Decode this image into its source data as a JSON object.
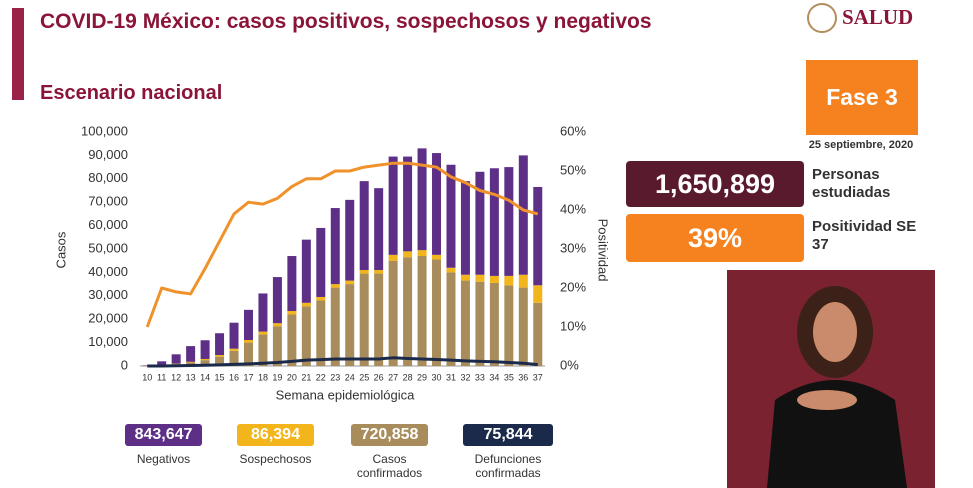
{
  "header": {
    "title": "COVID-19 México: casos positivos, sospechosos y negativos",
    "subtitle": "Escenario nacional",
    "logo": "SALUD",
    "phase": "Fase 3",
    "date": "25 septiembre, 2020"
  },
  "stats": [
    {
      "value": "1,650,899",
      "label": "Personas estudiadas"
    },
    {
      "value": "39%",
      "label": "Positividad SE 37"
    }
  ],
  "chart_data": {
    "type": "bar",
    "x_label": "Semana epidemiológica",
    "y_label": "Casos",
    "y2_label": "Positividad",
    "categories": [
      "10",
      "11",
      "12",
      "13",
      "14",
      "15",
      "16",
      "17",
      "18",
      "19",
      "20",
      "21",
      "22",
      "23",
      "24",
      "25",
      "26",
      "27",
      "28",
      "29",
      "30",
      "31",
      "32",
      "33",
      "34",
      "35",
      "36",
      "37"
    ],
    "ylim": [
      0,
      100000
    ],
    "yticks": [
      0,
      {
        "value": 10000,
        "label": "10,000"
      },
      {
        "value": 20000,
        "label": "20,000"
      },
      {
        "value": 30000,
        "label": "30,000"
      },
      {
        "value": 40000,
        "label": "40,000"
      },
      {
        "value": 50000,
        "label": "50,000"
      },
      {
        "value": 60000,
        "label": "60,000"
      },
      {
        "value": 70000,
        "label": "70,000"
      },
      {
        "value": 80000,
        "label": "80,000"
      },
      {
        "value": 90000,
        "label": "90,000"
      },
      {
        "value": 100000,
        "label": "100,000"
      }
    ],
    "y2lim": [
      0,
      60
    ],
    "y2ticks": [
      {
        "value": 0,
        "label": "0%"
      },
      {
        "value": 10,
        "label": "10%"
      },
      {
        "value": 20,
        "label": "20%"
      },
      {
        "value": 30,
        "label": "30%"
      },
      {
        "value": 40,
        "label": "40%"
      },
      {
        "value": 50,
        "label": "50%"
      },
      {
        "value": 60,
        "label": "60%"
      }
    ],
    "series": [
      {
        "name": "Negativos",
        "total": "843,647",
        "type": "bar",
        "color": "#5e2f86",
        "values": [
          150,
          1600,
          4000,
          6700,
          8000,
          9300,
          11100,
          12900,
          16300,
          19700,
          23500,
          27000,
          29500,
          32500,
          34500,
          38000,
          35000,
          42000,
          40500,
          43500,
          43500,
          44000,
          40000,
          44000,
          46000,
          46500,
          51000,
          42000
        ]
      },
      {
        "name": "Sospechosos",
        "total": "86,394",
        "type": "bar",
        "color": "#f2b51b",
        "values": [
          50,
          100,
          200,
          300,
          500,
          700,
          900,
          1100,
          1200,
          1300,
          1500,
          1500,
          1500,
          1500,
          1500,
          1500,
          1500,
          2500,
          2500,
          2500,
          2000,
          2000,
          2500,
          3000,
          3000,
          4000,
          5500,
          7500
        ]
      },
      {
        "name": "Casos confirmados",
        "total": "720,858",
        "type": "bar",
        "color": "#a98c5b",
        "values": [
          100,
          300,
          800,
          1500,
          2500,
          4000,
          6500,
          10000,
          13500,
          17000,
          22000,
          25500,
          28000,
          33500,
          35000,
          39500,
          39500,
          45000,
          46500,
          47000,
          45500,
          40000,
          36500,
          36000,
          35500,
          34500,
          33500,
          27000
        ]
      },
      {
        "name": "Defunciones confirmadas",
        "total": "75,844",
        "type": "line",
        "color": "#1b2a4a",
        "values": [
          0,
          0,
          100,
          200,
          300,
          500,
          700,
          900,
          1200,
          1500,
          2000,
          2500,
          2700,
          3000,
          3000,
          3000,
          3000,
          3500,
          3200,
          3000,
          2800,
          2500,
          2200,
          2000,
          1800,
          1500,
          1200,
          600
        ]
      },
      {
        "type": "line",
        "axis": "y2",
        "color": "#f0922b",
        "values": [
          10,
          20,
          19,
          18.5,
          25,
          32,
          39,
          42,
          41.5,
          43,
          46,
          48,
          48,
          50,
          50,
          51,
          51.5,
          52,
          52,
          51.5,
          51,
          48.5,
          47,
          45,
          44,
          42.5,
          40,
          39
        ]
      }
    ]
  }
}
